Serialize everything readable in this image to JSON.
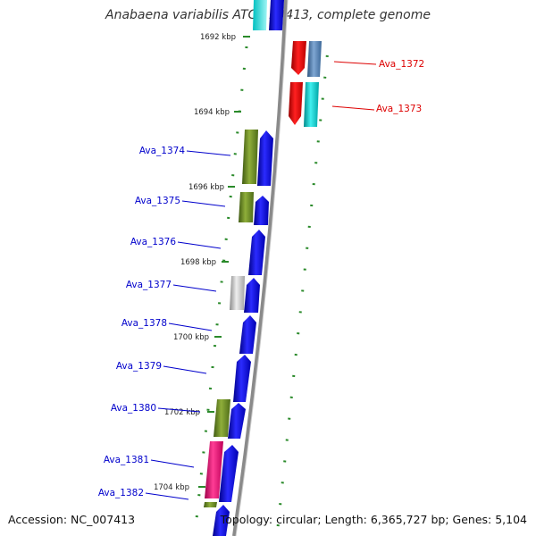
{
  "title": "Anabaena variabilis ATCC 29413, complete genome",
  "footer": {
    "accession": "Accession: NC_007413",
    "summary": "Topology: circular; Length: 6,365,727 bp; Genes: 5,104"
  },
  "ticks": [
    "1692 kbp",
    "1694 kbp",
    "1696 kbp",
    "1698 kbp",
    "1700 kbp",
    "1702 kbp",
    "1704 kbp"
  ],
  "genes": [
    {
      "label": "Ava_1372",
      "strand": "reverse",
      "color": "#dd0000"
    },
    {
      "label": "Ava_1373",
      "strand": "reverse",
      "color": "#dd0000"
    },
    {
      "label": "Ava_1374",
      "strand": "forward",
      "color": "#0000cc"
    },
    {
      "label": "Ava_1375",
      "strand": "forward",
      "color": "#0000cc"
    },
    {
      "label": "Ava_1376",
      "strand": "forward",
      "color": "#0000cc"
    },
    {
      "label": "Ava_1377",
      "strand": "forward",
      "color": "#0000cc"
    },
    {
      "label": "Ava_1378",
      "strand": "forward",
      "color": "#0000cc"
    },
    {
      "label": "Ava_1379",
      "strand": "forward",
      "color": "#0000cc"
    },
    {
      "label": "Ava_1380",
      "strand": "forward",
      "color": "#0000cc"
    },
    {
      "label": "Ava_1381",
      "strand": "forward",
      "color": "#0000cc"
    },
    {
      "label": "Ava_1382",
      "strand": "forward",
      "color": "#0000cc"
    }
  ],
  "colors": {
    "backbone": "#808080",
    "tick": "#2a8a2a",
    "forward_gene": "#0000ee",
    "reverse_gene": "#ee0000",
    "cog_green": "#6b8e23",
    "cog_steelblue": "#4f7fb5",
    "cog_cyan": "#00c8c8",
    "cog_gray": "#b8b8b8",
    "cog_pink": "#ee1177"
  }
}
